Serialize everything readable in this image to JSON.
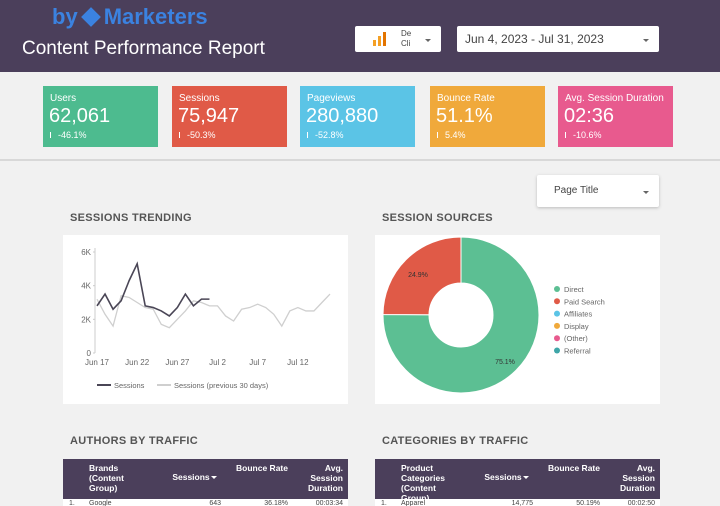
{
  "header": {
    "logo": {
      "prefix": "by",
      "name": "Marketers"
    },
    "title": "Content Performance Report",
    "source_selector": [
      "De",
      "Cli"
    ],
    "date_range": "Jun 4, 2023 - Jul 31, 2023"
  },
  "kpis": [
    {
      "label": "Users",
      "value": "62,061",
      "change": "-46.1%",
      "color": "#4dbb8f"
    },
    {
      "label": "Sessions",
      "value": "75,947",
      "change": "-50.3%",
      "color": "#e05a47"
    },
    {
      "label": "Pageviews",
      "value": "280,880",
      "change": "-52.8%",
      "color": "#5bc4e6"
    },
    {
      "label": "Bounce Rate",
      "value": "51.1%",
      "change": "5.4%",
      "color": "#f0a93b"
    },
    {
      "label": "Avg. Session Duration",
      "value": "02:36",
      "change": "-10.6%",
      "color": "#e85a8e"
    }
  ],
  "filter": "Page Title",
  "chart_data": [
    {
      "type": "line",
      "title": "SESSIONS TRENDING",
      "categories": [
        "Jun 17",
        null,
        null,
        null,
        null,
        "Jun 22",
        null,
        null,
        null,
        null,
        "Jun 27",
        null,
        null,
        null,
        null,
        "Jul 2",
        null,
        null,
        null,
        null,
        "Jul 7",
        null,
        null,
        null,
        null,
        "Jul 12",
        null,
        null,
        null,
        null
      ],
      "series": [
        {
          "name": "Sessions",
          "color": "#4a4656",
          "values": [
            2800,
            3500,
            2600,
            3100,
            4300,
            5300,
            2800,
            2700,
            2500,
            2200,
            2700,
            3500,
            2800,
            3200,
            3200,
            null,
            null,
            null,
            null,
            null,
            null,
            null,
            null,
            null,
            null,
            null,
            null,
            null,
            null,
            null
          ]
        },
        {
          "name": "Sessions (previous 30 days)",
          "color": "#cfcfcf",
          "values": [
            3200,
            2300,
            1600,
            3400,
            3300,
            3000,
            2700,
            2600,
            1700,
            1500,
            2000,
            2500,
            3100,
            3000,
            2800,
            2800,
            2200,
            1900,
            2600,
            2700,
            2900,
            2700,
            2300,
            1600,
            2500,
            2700,
            2500,
            2500,
            3000,
            3500
          ]
        }
      ],
      "ylim": [
        0,
        6000
      ],
      "yticks": [
        0,
        {
          "value": 2000,
          "label": "2K"
        },
        {
          "value": 4000,
          "label": "4K"
        },
        {
          "value": 6000,
          "label": "6K"
        }
      ],
      "legend": "bottom"
    },
    {
      "type": "donut",
      "title": "SESSION SOURCES",
      "categories": [
        "Direct",
        "Paid Search",
        "Affiliates",
        "Display",
        "(Other)",
        "Referral"
      ],
      "values": [
        75.1,
        24.9,
        0,
        0,
        0,
        0
      ],
      "value_labels": [
        "75.1%",
        "24.9%",
        null,
        null,
        null,
        null
      ],
      "colors": [
        "#5cbf93",
        "#e05a47",
        "#5bc4e6",
        "#f0a93b",
        "#e85a8e",
        "#3fa6a8"
      ],
      "legend": "right"
    }
  ],
  "tables": [
    {
      "title": "AUTHORS BY TRAFFIC",
      "columns": [
        "Brands (Content Group)",
        "Sessions",
        "Bounce Rate",
        "Avg. Session Duration"
      ],
      "rows": [
        [
          "1.",
          "Google",
          "643",
          "36.18%",
          "00:03:34"
        ]
      ]
    },
    {
      "title": "CATEGORIES BY TRAFFIC",
      "columns": [
        "Product Categories (Content Group)",
        "Sessions",
        "Bounce Rate",
        "Avg. Session Duration"
      ],
      "rows": [
        [
          "1.",
          "Apparel",
          "14,775",
          "50.19%",
          "00:02:50"
        ]
      ]
    }
  ]
}
